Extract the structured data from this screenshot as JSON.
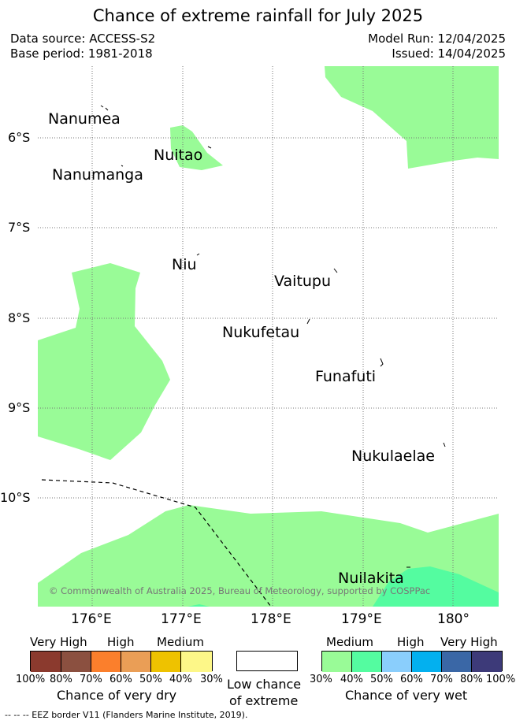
{
  "title": "Chance of extreme rainfall for July 2025",
  "info": {
    "data_source": "Data source: ACCESS-S2",
    "base_period": "Base period: 1981-2018",
    "model_run": "Model Run: 12/04/2025",
    "issued": "Issued: 14/04/2025"
  },
  "map": {
    "lat_labels": [
      "6°S",
      "7°S",
      "8°S",
      "9°S",
      "10°S"
    ],
    "lon_labels": [
      "176°E",
      "177°E",
      "178°E",
      "179°E",
      "180°"
    ],
    "places": [
      "Nanumea",
      "Nuitao",
      "Nanumanga",
      "Niu",
      "Vaitupu",
      "Nukufetau",
      "Funafuti",
      "Nukulaelae",
      "Nuilakita"
    ],
    "copyright": "© Commonwealth of Australia 2025, Bureau of Meteorology, supported by COSPPac",
    "colors": {
      "wet_30_40": "#99fb97",
      "wet_40_50": "#54fca0",
      "grid": "#777777",
      "eez": "#000000"
    }
  },
  "legend": {
    "dry": {
      "categories": [
        "Very High",
        "High",
        "Medium"
      ],
      "ticks": [
        "100%",
        "80%",
        "70%",
        "60%",
        "50%",
        "40%",
        "30%"
      ],
      "caption": "Chance of very dry",
      "colors": [
        "#8b3a2e",
        "#8b5040",
        "#fb7f2c",
        "#ea9e56",
        "#eec200",
        "#fdf788"
      ]
    },
    "low": {
      "line1": "Low chance",
      "line2": "of extreme"
    },
    "wet": {
      "categories": [
        "Medium",
        "High",
        "Very High"
      ],
      "ticks": [
        "30%",
        "40%",
        "50%",
        "60%",
        "70%",
        "80%",
        "100%"
      ],
      "caption": "Chance of very wet",
      "colors": [
        "#99fb97",
        "#54fca0",
        "#8acefc",
        "#03b0ef",
        "#3a67a6",
        "#3d3a79"
      ]
    }
  },
  "eez_note": "--  --  -- EEZ border V11 (Flanders Marine Institute, 2019)."
}
